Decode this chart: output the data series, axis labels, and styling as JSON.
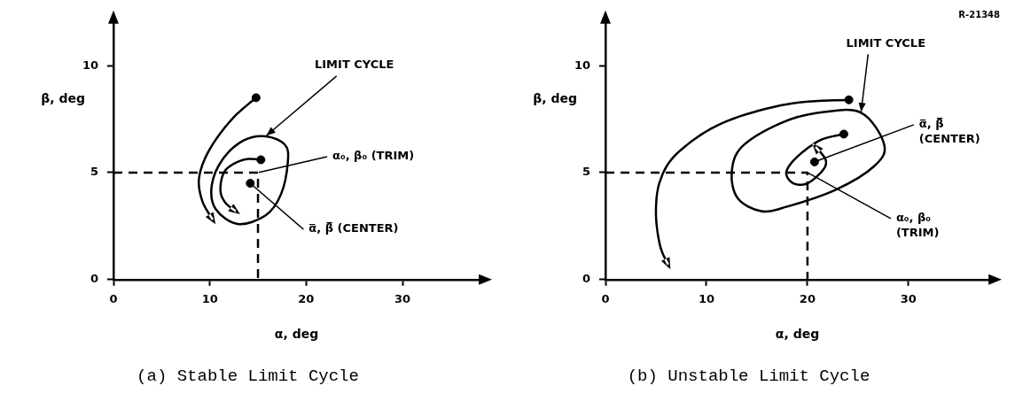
{
  "chart_data": [
    {
      "type": "line",
      "title": "(a) Stable Limit Cycle",
      "xlabel": "α, deg",
      "ylabel": "β, deg",
      "xlim": [
        0,
        38
      ],
      "ylim": [
        0,
        12
      ],
      "xticks": [
        0,
        10,
        20,
        30
      ],
      "yticks": [
        0,
        5,
        10
      ],
      "grid": false,
      "legend": false,
      "series": [
        {
          "color": "#000000",
          "line_style": "dashed",
          "x": [
            0,
            15,
            15
          ],
          "values": [
            5,
            5,
            0
          ]
        },
        {
          "type": "scatter",
          "marker": "circle",
          "color": "#000000",
          "x": [
            14.8,
            15.3,
            14.2
          ],
          "values": [
            8.5,
            5.6,
            4.5
          ]
        }
      ],
      "annotations": [
        "LIMIT CYCLE",
        {
          "text": "α₀, β₀ (TRIM)",
          "x": 15,
          "y": 5
        },
        {
          "text": "α̅, β̅ (CENTER)",
          "x": 14.2,
          "y": 4.5
        }
      ]
    },
    {
      "type": "line",
      "title": "(b) Unstable Limit Cycle",
      "xlabel": "α, deg",
      "ylabel": "β, deg",
      "xlim": [
        0,
        38
      ],
      "ylim": [
        0,
        12
      ],
      "xticks": [
        0,
        10,
        20,
        30
      ],
      "yticks": [
        0,
        5,
        10
      ],
      "grid": false,
      "legend": false,
      "series": [
        {
          "color": "#000000",
          "line_style": "dashed",
          "x": [
            0,
            20,
            20
          ],
          "values": [
            5,
            5,
            0
          ]
        },
        {
          "type": "scatter",
          "marker": "circle",
          "color": "#000000",
          "x": [
            24.1,
            23.6,
            20.7
          ],
          "values": [
            8.4,
            6.8,
            5.5
          ]
        }
      ],
      "annotations": [
        "LIMIT CYCLE",
        {
          "text": "α̅, β̅\n(CENTER)",
          "x": 20.7,
          "y": 5.5
        },
        {
          "text": "α₀, β₀\n(TRIM)",
          "x": 20,
          "y": 5
        },
        "R-21348"
      ]
    }
  ]
}
